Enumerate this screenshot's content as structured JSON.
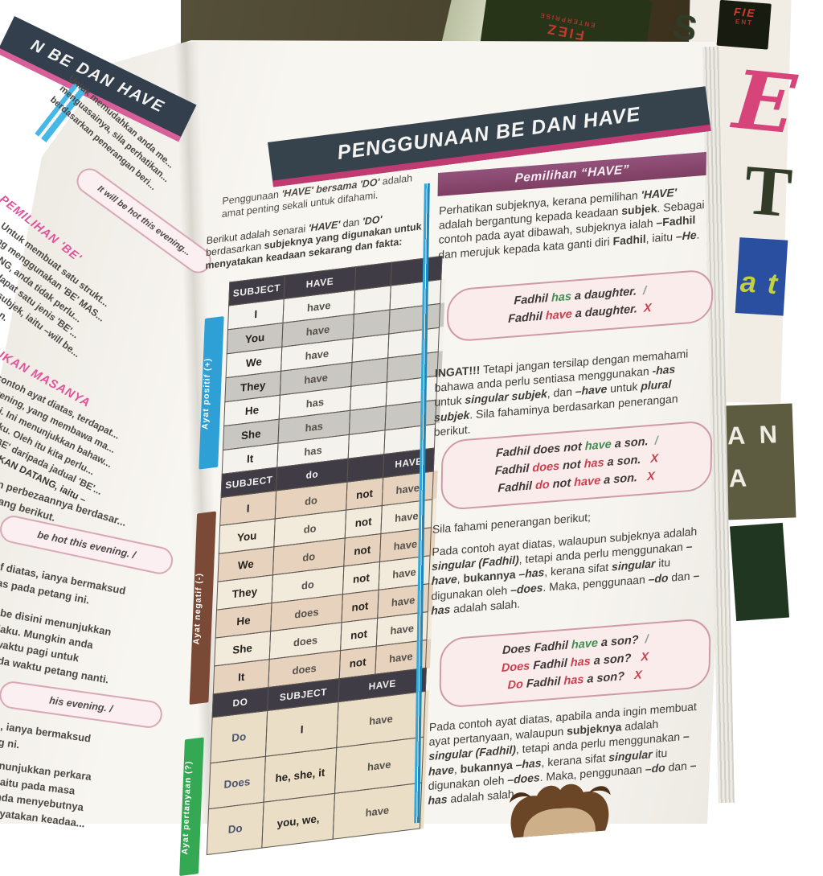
{
  "colors": {
    "correct": "#3e8e52",
    "wrong": "#c9404e",
    "slash": "#8aa08a",
    "accent_pink": "#c23a72",
    "banner_bg": "#37434c",
    "purple_band": "#8c4a72",
    "positive_label": "#2fa0d6",
    "negative_label": "#7b4a37",
    "question_label": "#34a853"
  },
  "background": {
    "green_book": {
      "logo_line1": "FIEZ",
      "logo_line2": "ENTERPRISE"
    },
    "corner_logo": {
      "line1": "FIE",
      "line2": "ENT"
    },
    "white_cover": {
      "letter_s": "S",
      "letter_e": "E",
      "letter_t": "T",
      "blue_box_text": "a t",
      "olive_box_line1": "A N",
      "olive_box_line2": "A"
    }
  },
  "left_page": {
    "banner": "N BE DAN HAVE",
    "intro_lines": [
      "Untuk memudahkan anda me...",
      "menguasainya, sila perhatikan...",
      "berdasarkan penerangan beri..."
    ],
    "example_box_1": "It will be hot this evening...",
    "heading_1": "PEMILIHAN 'BE'",
    "body_1_lines": [
      "Untuk membuat satu strukt...",
      "ang menggunakan 'BE' MAS...",
      "ATANG, anda tidak perlu...",
      "ya terdapat satu jenis 'BE'...",
      "ua jenis subjek, iaitu –will be...",
      "aksud –akan."
    ],
    "heading_2": "UKAN MASANYA",
    "body_2_lines": [
      "contoh ayat diatas, terdapat...",
      "evening, yang membawa ma...",
      "g ini. Ini menunjukkan bahaw...",
      "berlaku. Oleh itu kita perlu...",
      "akan 'BE' daripada jadual 'BE'...",
      {
        "t": "MASA AKAN DATANG, iaitu –",
        "b": true
      }
    ],
    "body_3_lines": [
      "n perbezaannya berdasar...",
      "yang berikut."
    ],
    "example_box_2": "be hot this evening.  /",
    "body_4_lines": [
      "f diatas, ianya bermaksud",
      "as pada petang ini."
    ],
    "body_5_lines": [
      "be disini menunjukkan",
      "laku. Mungkin anda",
      "waktu pagi untuk",
      "ada waktu petang nanti."
    ],
    "example_box_3": "his evening.  /",
    "body_6_lines": [
      ", ianya bermaksud",
      "g ni."
    ],
    "body_7_lines": [
      "nunjukkan perkara",
      "iaitu pada masa",
      "nda menyebutnya",
      "nyatakan keadaa..."
    ]
  },
  "right_page": {
    "banner": "PENGGUNAAN BE DAN HAVE",
    "left_column": {
      "para1": [
        {
          "t": "Penggunaan "
        },
        {
          "t": "'HAVE'",
          "b": true,
          "i": true
        },
        {
          "t": " "
        },
        {
          "t": "bersama",
          "b": true,
          "i": true
        },
        {
          "t": " "
        },
        {
          "t": "'DO'",
          "b": true,
          "i": true
        },
        {
          "t": " adalah amat penting sekali untuk difahami."
        }
      ],
      "para2": [
        {
          "t": "Berikut adalah senarai "
        },
        {
          "t": "'HAVE'",
          "b": true,
          "i": true
        },
        {
          "t": " dan "
        },
        {
          "t": "'DO'",
          "b": true,
          "i": true
        },
        {
          "t": " berdasarkan "
        },
        {
          "t": "subjeknya yang digunakan untuk menyatakan keadaan sekarang dan fakta:",
          "b": true
        }
      ],
      "table": {
        "sections": [
          {
            "label": "Ayat positif (+)",
            "label_color": "#2fa0d6",
            "header": [
              "SUBJECT",
              "HAVE",
              "",
              ""
            ],
            "rows": [
              [
                "I",
                "have",
                "",
                ""
              ],
              [
                "You",
                "have",
                "",
                ""
              ],
              [
                "We",
                "have",
                "",
                ""
              ],
              [
                "They",
                "have",
                "",
                ""
              ],
              [
                "He",
                "has",
                "",
                ""
              ],
              [
                "She",
                "has",
                "",
                ""
              ],
              [
                "It",
                "has",
                "",
                ""
              ]
            ]
          },
          {
            "label": "Ayat negatif (-)",
            "label_color": "#7b4a37",
            "header": [
              "SUBJECT",
              "do",
              "",
              "HAVE"
            ],
            "rows": [
              [
                "I",
                "do",
                "not",
                "have"
              ],
              [
                "You",
                "do",
                "not",
                "have"
              ],
              [
                "We",
                "do",
                "not",
                "have"
              ],
              [
                "They",
                "do",
                "not",
                "have"
              ],
              [
                "He",
                "does",
                "not",
                "have"
              ],
              [
                "She",
                "does",
                "not",
                "have"
              ],
              [
                "It",
                "does",
                "not",
                "have"
              ]
            ]
          },
          {
            "label": "Ayat pertanyaan (?)",
            "label_color": "#34a853",
            "header": [
              "DO",
              "SUBJECT",
              "HAVE"
            ],
            "rows": [
              [
                "Do",
                "I",
                "have"
              ],
              [
                "Does",
                "he, she, it",
                "have"
              ],
              [
                "Do",
                "you, we,",
                "have"
              ]
            ]
          }
        ]
      }
    },
    "right_column": {
      "header": "Pemilihan “HAVE”",
      "para1": [
        {
          "t": "Perhatikan subjeknya, kerana pemilihan "
        },
        {
          "t": "'HAVE'",
          "b": true,
          "i": true
        },
        {
          "t": " adalah bergantung kepada keadaan "
        },
        {
          "t": "subjek",
          "b": true
        },
        {
          "t": ". Sebagai contoh pada ayat dibawah, subjeknya ialah "
        },
        {
          "t": "–Fadhil",
          "b": true
        },
        {
          "t": " dan merujuk kepada kata ganti diri "
        },
        {
          "t": "Fadhil",
          "b": true
        },
        {
          "t": ", iaitu "
        },
        {
          "t": "–He",
          "b": true,
          "i": true
        },
        {
          "t": "."
        }
      ],
      "box1_lines": [
        [
          {
            "t": "Fadhil ",
            "b": true,
            "i": true
          },
          {
            "t": "has",
            "b": true,
            "i": true,
            "c": "#3e8e52"
          },
          {
            "t": " a daughter.",
            "b": true,
            "i": true
          },
          {
            "t": "  /",
            "c": "#8aa08a",
            "m": "check-mark"
          }
        ],
        [
          {
            "t": "Fadhil ",
            "b": true,
            "i": true
          },
          {
            "t": "have",
            "b": true,
            "i": true,
            "c": "#c9404e"
          },
          {
            "t": " a daughter.",
            "b": true,
            "i": true
          },
          {
            "t": "  X",
            "b": true,
            "i": true,
            "c": "#c9404e",
            "m": "cross-mark"
          }
        ]
      ],
      "para2": [
        {
          "t": "INGAT!!!",
          "b": true
        },
        {
          "t": " Tetapi jangan tersilap dengan memahami bahawa anda perlu sentiasa menggunakan "
        },
        {
          "t": "-has",
          "b": true,
          "i": true
        },
        {
          "t": " untuk "
        },
        {
          "t": "singular subjek",
          "b": true,
          "i": true
        },
        {
          "t": ", dan "
        },
        {
          "t": "–have",
          "b": true,
          "i": true
        },
        {
          "t": " untuk "
        },
        {
          "t": "plural subjek",
          "b": true,
          "i": true
        },
        {
          "t": ". Sila fahaminya berdasarkan penerangan berikut."
        }
      ],
      "box2_lines": [
        [
          {
            "t": "Fadhil does not ",
            "b": true,
            "i": true
          },
          {
            "t": "have",
            "b": true,
            "i": true,
            "c": "#3e8e52"
          },
          {
            "t": " a son.",
            "b": true,
            "i": true
          },
          {
            "t": "  /",
            "c": "#8aa08a",
            "m": "check-mark"
          }
        ],
        [
          {
            "t": "Fadhil ",
            "b": true,
            "i": true
          },
          {
            "t": "does",
            "b": true,
            "i": true,
            "c": "#c9404e"
          },
          {
            "t": " not ",
            "b": true,
            "i": true
          },
          {
            "t": "has",
            "b": true,
            "i": true,
            "c": "#c9404e"
          },
          {
            "t": " a son.",
            "b": true,
            "i": true
          },
          {
            "t": "   X",
            "b": true,
            "i": true,
            "c": "#c9404e",
            "m": "cross-mark"
          }
        ],
        [
          {
            "t": "Fadhil ",
            "b": true,
            "i": true
          },
          {
            "t": "do",
            "b": true,
            "i": true,
            "c": "#c9404e"
          },
          {
            "t": " not ",
            "b": true,
            "i": true
          },
          {
            "t": "have",
            "b": true,
            "i": true,
            "c": "#c9404e"
          },
          {
            "t": " a son.",
            "b": true,
            "i": true
          },
          {
            "t": "   X",
            "b": true,
            "i": true,
            "c": "#c9404e",
            "m": "cross-mark"
          }
        ]
      ],
      "para3": "Sila fahami penerangan berikut;",
      "para4": [
        {
          "t": "Pada contoh ayat diatas, walaupun subjeknya adalah "
        },
        {
          "t": "singular (Fadhil)",
          "b": true,
          "i": true
        },
        {
          "t": ", tetapi anda perlu menggunakan "
        },
        {
          "t": "–have",
          "b": true,
          "i": true
        },
        {
          "t": ", "
        },
        {
          "t": "bukannya",
          "b": true
        },
        {
          "t": " "
        },
        {
          "t": "–has",
          "b": true,
          "i": true
        },
        {
          "t": ", kerana sifat "
        },
        {
          "t": "singular",
          "b": true,
          "i": true
        },
        {
          "t": " itu digunakan oleh "
        },
        {
          "t": "–does",
          "b": true,
          "i": true
        },
        {
          "t": ". Maka, penggunaan "
        },
        {
          "t": "–do",
          "b": true,
          "i": true
        },
        {
          "t": " dan "
        },
        {
          "t": "–has",
          "b": true,
          "i": true
        },
        {
          "t": " adalah salah."
        }
      ],
      "box3_lines": [
        [
          {
            "t": "Does Fadhil ",
            "b": true,
            "i": true
          },
          {
            "t": "have",
            "b": true,
            "i": true,
            "c": "#3e8e52"
          },
          {
            "t": " a son?",
            "b": true,
            "i": true
          },
          {
            "t": "  /",
            "c": "#8aa08a",
            "m": "check-mark"
          }
        ],
        [
          {
            "t": "Does",
            "b": true,
            "i": true,
            "c": "#c9404e"
          },
          {
            "t": " Fadhil ",
            "b": true,
            "i": true
          },
          {
            "t": "has",
            "b": true,
            "i": true,
            "c": "#c9404e"
          },
          {
            "t": " a son?",
            "b": true,
            "i": true
          },
          {
            "t": "   X",
            "b": true,
            "i": true,
            "c": "#c9404e",
            "m": "cross-mark"
          }
        ],
        [
          {
            "t": "Do",
            "b": true,
            "i": true,
            "c": "#c9404e"
          },
          {
            "t": " Fadhil ",
            "b": true,
            "i": true
          },
          {
            "t": "has",
            "b": true,
            "i": true,
            "c": "#c9404e"
          },
          {
            "t": " a son?",
            "b": true,
            "i": true
          },
          {
            "t": "   X",
            "b": true,
            "i": true,
            "c": "#c9404e",
            "m": "cross-mark"
          }
        ]
      ],
      "para5": [
        {
          "t": "Pada contoh ayat diatas, apabila anda ingin membuat ayat pertanyaan, walaupun "
        },
        {
          "t": "subjeknya",
          "b": true
        },
        {
          "t": " adalah "
        },
        {
          "t": "singular (Fadhil)",
          "b": true,
          "i": true
        },
        {
          "t": ", tetapi anda perlu menggunakan "
        },
        {
          "t": "–have",
          "b": true,
          "i": true
        },
        {
          "t": ", "
        },
        {
          "t": "bukannya",
          "b": true
        },
        {
          "t": " "
        },
        {
          "t": "–has",
          "b": true,
          "i": true
        },
        {
          "t": ", kerana sifat "
        },
        {
          "t": "singular",
          "b": true,
          "i": true
        },
        {
          "t": " itu digunakan oleh "
        },
        {
          "t": "–does",
          "b": true,
          "i": true
        },
        {
          "t": ". Maka, penggunaan "
        },
        {
          "t": "–do",
          "b": true,
          "i": true
        },
        {
          "t": " dan "
        },
        {
          "t": "–has",
          "b": true,
          "i": true
        },
        {
          "t": " adalah salah."
        }
      ]
    }
  }
}
